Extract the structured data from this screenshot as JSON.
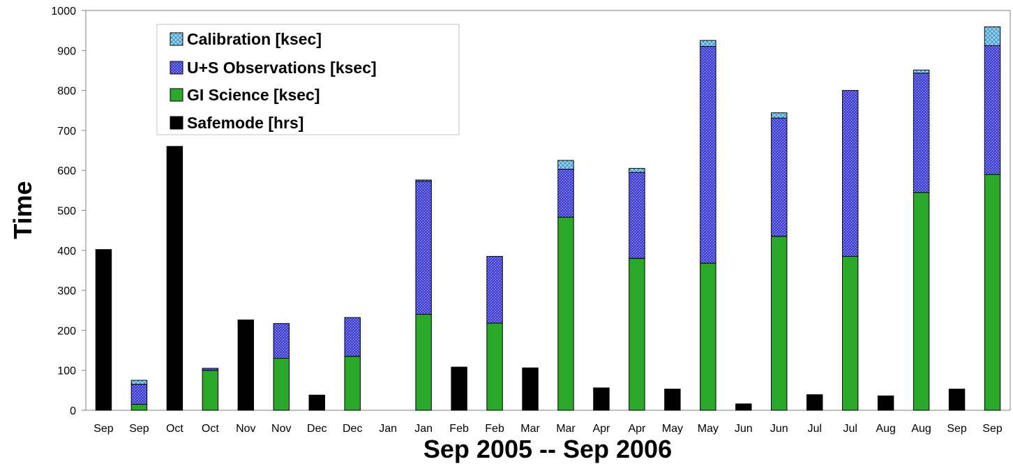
{
  "chart_data": {
    "type": "bar",
    "stacked": true,
    "xlabel": "Sep 2005 -- Sep 2006",
    "ylabel": "Time",
    "ylim": [
      0,
      1000
    ],
    "yticks": [
      0,
      100,
      200,
      300,
      400,
      500,
      600,
      700,
      800,
      900,
      1000
    ],
    "grid": false,
    "legend_position": "top-left",
    "categories": [
      "Sep",
      "Sep",
      "Oct",
      "Oct",
      "Nov",
      "Nov",
      "Dec",
      "Dec",
      "Jan",
      "Jan",
      "Feb",
      "Feb",
      "Mar",
      "Mar",
      "Apr",
      "Apr",
      "May",
      "May",
      "Jun",
      "Jun",
      "Jul",
      "Jul",
      "Aug",
      "Aug",
      "Sep",
      "Sep"
    ],
    "series": [
      {
        "name": "Safemode [hrs]",
        "color": "#000000",
        "values": [
          402,
          0,
          660,
          0,
          226,
          0,
          38,
          0,
          0,
          0,
          108,
          0,
          106,
          0,
          56,
          0,
          53,
          0,
          16,
          0,
          39,
          0,
          36,
          0,
          53,
          0
        ]
      },
      {
        "name": "GI Science [ksec]",
        "color": "#2aa829",
        "values": [
          0,
          15,
          0,
          100,
          0,
          130,
          0,
          135,
          0,
          240,
          0,
          218,
          0,
          483,
          0,
          380,
          0,
          368,
          0,
          435,
          0,
          385,
          0,
          545,
          0,
          590
        ]
      },
      {
        "name": "U+S Observations [ksec]",
        "color": "#4646dc",
        "values": [
          0,
          50,
          0,
          5,
          0,
          87,
          0,
          97,
          0,
          333,
          0,
          167,
          0,
          120,
          0,
          215,
          0,
          542,
          0,
          296,
          0,
          415,
          0,
          298,
          0,
          322
        ]
      },
      {
        "name": "Calibration [ksec]",
        "color": "#8fd8f5",
        "values": [
          0,
          10,
          0,
          0,
          0,
          0,
          0,
          0,
          0,
          3,
          0,
          0,
          0,
          22,
          0,
          10,
          0,
          15,
          0,
          13,
          0,
          0,
          0,
          8,
          0,
          47
        ]
      }
    ],
    "legend": [
      {
        "name": "Calibration [ksec]",
        "color": "#8fd8f5"
      },
      {
        "name": "U+S Observations [ksec]",
        "color": "#4646dc"
      },
      {
        "name": "GI Science [ksec]",
        "color": "#2aa829"
      },
      {
        "name": "Safemode [hrs]",
        "color": "#000000"
      }
    ]
  }
}
